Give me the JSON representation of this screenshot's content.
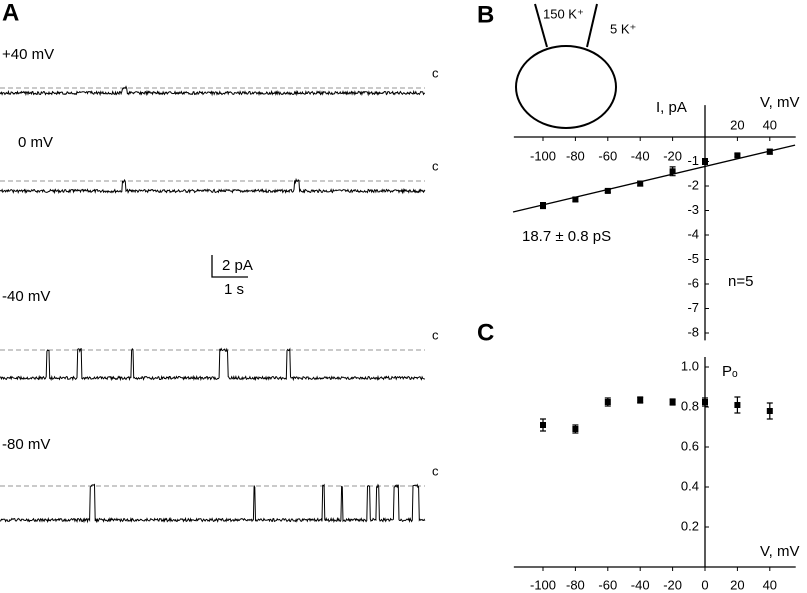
{
  "chart_data": [
    {
      "type": "trace",
      "panel": "A",
      "traces": [
        {
          "label": "+40 mV",
          "closed_label": "c"
        },
        {
          "label": "0 mV",
          "closed_label": "c"
        },
        {
          "label": "-40 mV",
          "closed_label": "c"
        },
        {
          "label": "-80 mV",
          "closed_label": "c"
        }
      ],
      "scale_bar": {
        "y_label": "2 pA",
        "x_label": "1 s"
      }
    },
    {
      "type": "scatter",
      "panel": "B",
      "inset": {
        "pipette_label": "150 K⁺",
        "bath_label": "5 K⁺"
      },
      "x_label": "V, mV",
      "y_label": "I, pA",
      "x": [
        -100,
        -80,
        -60,
        -40,
        -20,
        0,
        20,
        40
      ],
      "values": [
        -2.8,
        -2.55,
        -2.2,
        -1.9,
        -1.4,
        -1.0,
        -0.75,
        -0.6
      ],
      "errors": [
        0.12,
        0.08,
        0.06,
        0.1,
        0.18,
        0.12,
        0.06,
        0.1
      ],
      "fit": {
        "x": [
          -118.5,
          55.6
        ],
        "y": [
          -3.06,
          -0.33
        ]
      },
      "annotations": [
        "18.7 ± 0.8 pS",
        "n=5"
      ],
      "xlim": [
        -118,
        56
      ],
      "ylim": [
        -8.3,
        1.3
      ],
      "xticks": [
        -100,
        -80,
        -60,
        -40,
        -20,
        20,
        40
      ],
      "yticks": [
        -1,
        -2,
        -3,
        -4,
        -5,
        -6,
        -7,
        -8
      ],
      "color": "#000000"
    },
    {
      "type": "scatter",
      "panel": "C",
      "x_label": "V, mV",
      "y_label": "Pₒ",
      "x": [
        -100,
        -80,
        -60,
        -40,
        -20,
        0,
        20,
        40
      ],
      "values": [
        0.71,
        0.69,
        0.825,
        0.835,
        0.825,
        0.825,
        0.81,
        0.78
      ],
      "errors": [
        0.03,
        0.02,
        0.02,
        0.015,
        0.015,
        0.02,
        0.04,
        0.04
      ],
      "xlim": [
        -118,
        56
      ],
      "ylim": [
        0,
        1.05
      ],
      "xticks": [
        -100,
        -80,
        -60,
        -40,
        -20,
        0,
        20,
        40
      ],
      "yticks": [
        0.2,
        0.4,
        0.6,
        0.8,
        {
          "value": 1,
          "label": "1.0"
        }
      ],
      "color": "#000000"
    }
  ]
}
